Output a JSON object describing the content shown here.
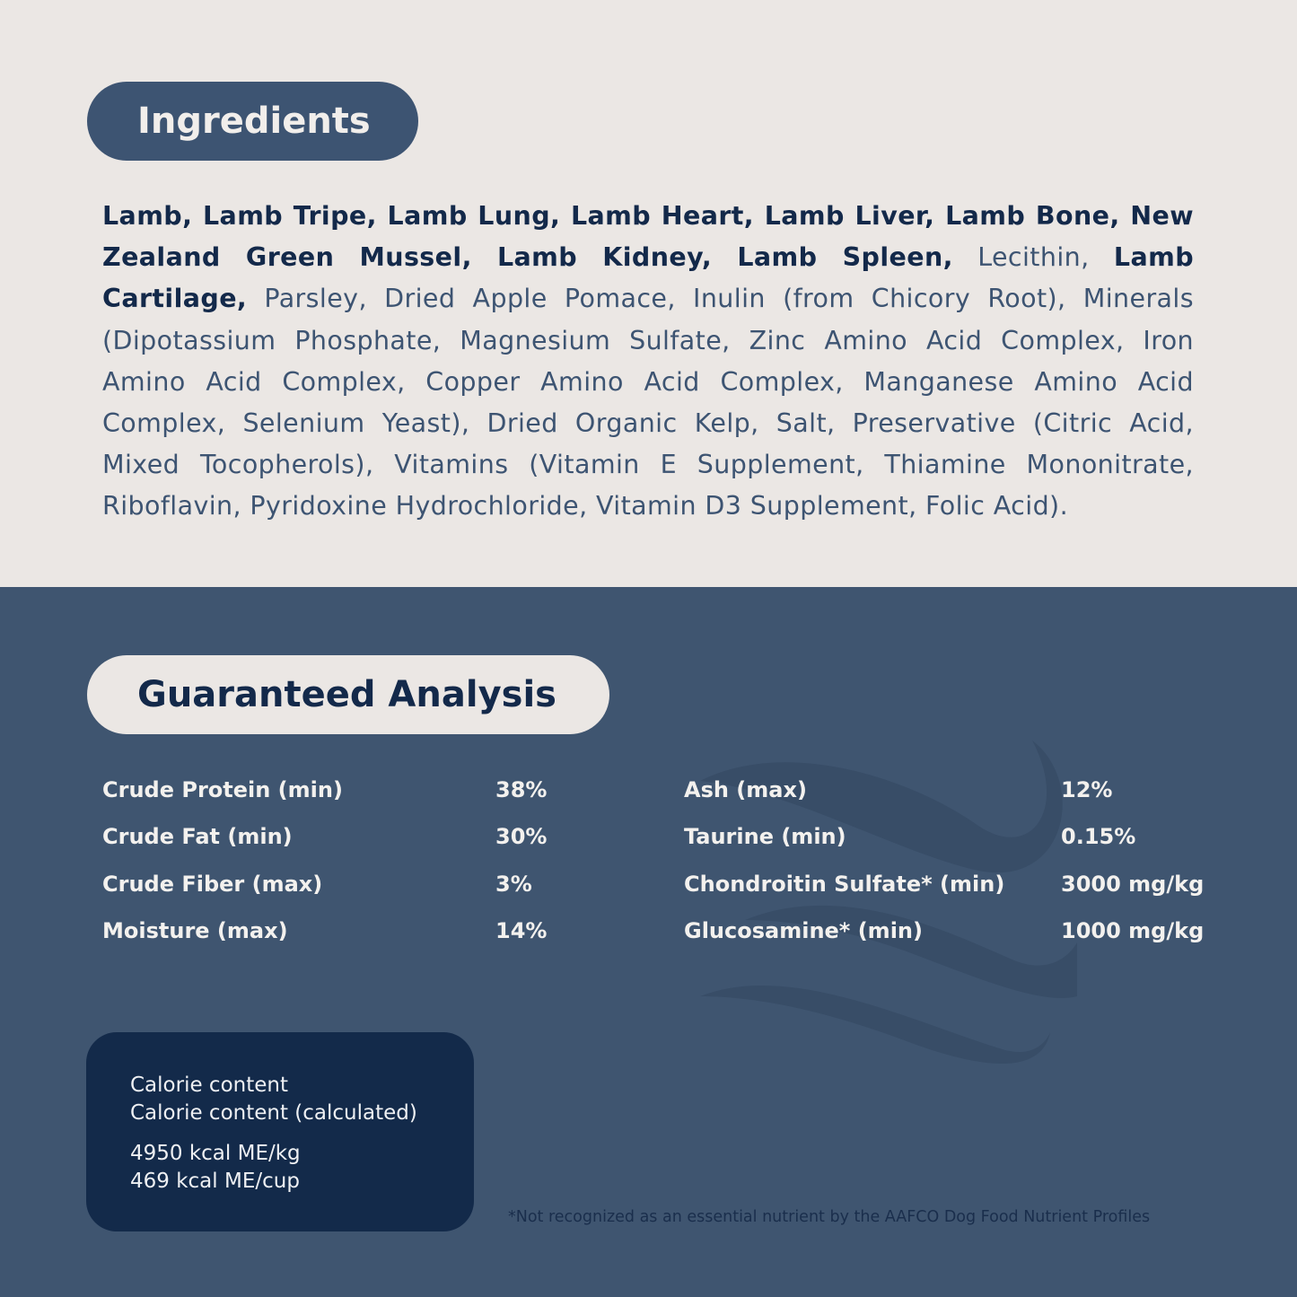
{
  "colors": {
    "top_bg": "#ebe7e4",
    "bottom_bg": "#3f5570",
    "navy": "#13294a",
    "slate": "#3d5472"
  },
  "ingredients": {
    "title": "Ingredients",
    "segments": [
      {
        "text": "Lamb, Lamb Tripe, Lamb Lung, Lamb Heart, Lamb Liver, Lamb Bone, New Zealand Green Mussel, Lamb Kidney, Lamb Spleen,",
        "bold": true
      },
      {
        "text": " Lecithin, ",
        "bold": false
      },
      {
        "text": "Lamb Cartilage,",
        "bold": true
      },
      {
        "text": " Parsley, Dried Apple Pomace, Inulin (from Chicory Root), Minerals (Dipotassium Phosphate, Magnesium Sulfate, Zinc Amino Acid Complex, Iron Amino Acid Complex, Copper Amino Acid Complex, Manganese Amino Acid Complex, Selenium Yeast), Dried Organic Kelp, Salt, Preservative (Citric Acid, Mixed Tocopherols), Vitamins (Vitamin E Supplement, Thiamine Mononitrate, Riboflavin, Pyridoxine Hydrochloride, Vitamin D3 Supplement, Folic Acid).",
        "bold": false
      }
    ]
  },
  "analysis": {
    "title": "Guaranteed Analysis",
    "left": [
      {
        "label": "Crude Protein (min)",
        "value": "38%"
      },
      {
        "label": "Crude Fat (min)",
        "value": "30%"
      },
      {
        "label": "Crude Fiber (max)",
        "value": "3%"
      },
      {
        "label": "Moisture (max)",
        "value": "14%"
      }
    ],
    "right": [
      {
        "label": "Ash (max)",
        "value": "12%"
      },
      {
        "label": "Taurine (min)",
        "value": "0.15%"
      },
      {
        "label": "Chondroitin Sulfate* (min)",
        "value": "3000 mg/kg"
      },
      {
        "label": "Glucosamine* (min)",
        "value": "1000 mg/kg"
      }
    ]
  },
  "calorie": {
    "line1": "Calorie content",
    "line2": "Calorie content (calculated)",
    "line3": "4950 kcal ME/kg",
    "line4": "469 kcal ME/cup"
  },
  "footnote": "*Not recognized as an essential nutrient by the AAFCO Dog Food Nutrient Profiles"
}
